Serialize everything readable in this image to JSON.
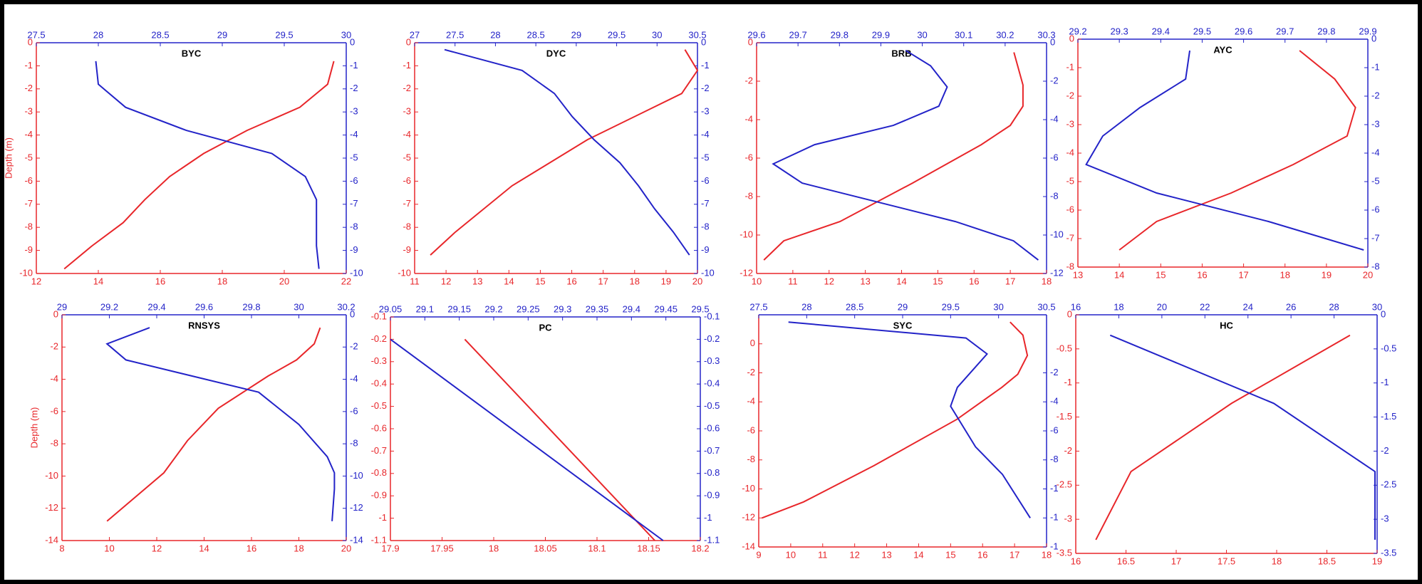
{
  "chart_data": [
    {
      "type": "line",
      "title": "BYC",
      "ylabel": "Depth (m)",
      "xlim": [
        12,
        22
      ],
      "xticks": [
        12,
        14,
        16,
        18,
        20,
        22
      ],
      "x2lim": [
        27.5,
        30
      ],
      "x2ticks": [
        27.5,
        28,
        28.5,
        29,
        29.5,
        30
      ],
      "ylim": [
        0,
        -10
      ],
      "yticks": [
        0,
        -1,
        -2,
        -3,
        -4,
        -5,
        -6,
        -7,
        -8,
        -9,
        -10
      ],
      "y2lim": [
        0,
        -10
      ],
      "y2ticks": [
        0,
        -1,
        -2,
        -3,
        -4,
        -5,
        -6,
        -7,
        -8,
        -9,
        -10
      ],
      "series": [
        {
          "color": "#e8262a",
          "x": [
            21.6,
            21.4,
            20.5,
            18.8,
            17.4,
            16.3,
            15.5,
            14.8,
            13.8,
            12.9
          ],
          "values": [
            -0.8,
            -1.8,
            -2.8,
            -3.8,
            -4.8,
            -5.8,
            -6.8,
            -7.8,
            -8.8,
            -9.8
          ]
        },
        {
          "color": "#2323c8",
          "axis": "y2",
          "x": [
            27.98,
            28.0,
            28.22,
            28.71,
            29.4,
            29.67,
            29.76,
            29.76,
            29.76,
            29.78
          ],
          "values": [
            -0.8,
            -1.8,
            -2.8,
            -3.8,
            -4.8,
            -5.8,
            -6.8,
            -7.8,
            -8.8,
            -9.8
          ]
        }
      ]
    },
    {
      "type": "line",
      "title": "DYC",
      "xlim": [
        11,
        20
      ],
      "xticks": [
        11,
        12,
        13,
        14,
        15,
        16,
        17,
        18,
        19,
        20
      ],
      "x2lim": [
        27,
        30.5
      ],
      "x2ticks": [
        27,
        27.5,
        28,
        28.5,
        29,
        29.5,
        30,
        30.5
      ],
      "ylim": [
        0,
        -10
      ],
      "yticks": [
        0,
        -1,
        -2,
        -3,
        -4,
        -5,
        -6,
        -7,
        -8,
        -9,
        -10
      ],
      "y2lim": [
        0,
        -10
      ],
      "y2ticks": [
        0,
        -1,
        -2,
        -3,
        -4,
        -5,
        -6,
        -7,
        -8,
        -9,
        -10
      ],
      "series": [
        {
          "color": "#e8262a",
          "x": [
            19.6,
            20.0,
            19.5,
            16.5,
            14.1,
            12.3,
            11.5
          ],
          "values": [
            -0.3,
            -1.2,
            -2.2,
            -4.2,
            -6.2,
            -8.2,
            -9.2
          ]
        },
        {
          "color": "#2323c8",
          "axis": "y2",
          "x": [
            27.37,
            28.33,
            28.73,
            28.95,
            29.22,
            29.54,
            29.77,
            29.97,
            30.2,
            30.4
          ],
          "values": [
            -0.3,
            -1.2,
            -2.2,
            -3.2,
            -4.2,
            -5.2,
            -6.2,
            -7.2,
            -8.2,
            -9.2
          ]
        }
      ]
    },
    {
      "type": "line",
      "title": "BRB",
      "xlim": [
        10,
        18
      ],
      "xticks": [
        10,
        11,
        12,
        13,
        14,
        15,
        16,
        17,
        18
      ],
      "x2lim": [
        29.6,
        30.3
      ],
      "x2ticks": [
        29.6,
        29.7,
        29.8,
        29.9,
        30,
        30.1,
        30.2,
        30.3
      ],
      "ylim": [
        0,
        -12
      ],
      "yticks": [
        0,
        -2,
        -4,
        -6,
        -8,
        -10,
        -12
      ],
      "y2lim": [
        0,
        -12
      ],
      "y2ticks": [
        0,
        -2,
        -4,
        -6,
        -8,
        -10,
        -12
      ],
      "series": [
        {
          "color": "#e8262a",
          "x": [
            17.1,
            17.35,
            17.35,
            17.0,
            16.2,
            14.3,
            12.3,
            10.75,
            10.2
          ],
          "values": [
            -0.5,
            -2.2,
            -3.3,
            -4.3,
            -5.3,
            -7.3,
            -9.3,
            -10.3,
            -11.3
          ]
        },
        {
          "color": "#2323c8",
          "axis": "y2",
          "x": [
            29.96,
            30.02,
            30.06,
            30.04,
            29.93,
            29.74,
            29.64,
            29.71,
            30.08,
            30.22,
            30.28
          ],
          "values": [
            -0.4,
            -1.2,
            -2.3,
            -3.3,
            -4.3,
            -5.3,
            -6.3,
            -7.3,
            -9.3,
            -10.3,
            -11.3
          ]
        }
      ]
    },
    {
      "type": "line",
      "title": "AYC",
      "xlim": [
        13,
        20
      ],
      "xticks": [
        13,
        14,
        15,
        16,
        17,
        18,
        19,
        20
      ],
      "x2lim": [
        29.2,
        29.9
      ],
      "x2ticks": [
        29.2,
        29.3,
        29.4,
        29.5,
        29.6,
        29.7,
        29.8,
        29.9
      ],
      "ylim": [
        0,
        -8
      ],
      "yticks": [
        0,
        -1,
        -2,
        -3,
        -4,
        -5,
        -6,
        -7,
        -8
      ],
      "y2lim": [
        0,
        -8
      ],
      "y2ticks": [
        0,
        -1,
        -2,
        -3,
        -4,
        -5,
        -6,
        -7,
        -8
      ],
      "series": [
        {
          "color": "#e8262a",
          "x": [
            18.35,
            19.2,
            19.7,
            19.5,
            18.2,
            16.7,
            14.9,
            14.0
          ],
          "values": [
            -0.4,
            -1.4,
            -2.4,
            -3.4,
            -4.4,
            -5.4,
            -6.4,
            -7.4
          ]
        },
        {
          "color": "#2323c8",
          "axis": "y2",
          "x": [
            29.47,
            29.46,
            29.35,
            29.26,
            29.22,
            29.39,
            29.66,
            29.89
          ],
          "values": [
            -0.4,
            -1.4,
            -2.4,
            -3.4,
            -4.4,
            -5.4,
            -6.4,
            -7.4
          ]
        }
      ]
    },
    {
      "type": "line",
      "title": "RNSYS",
      "ylabel": "Depth (m)",
      "xlim": [
        8,
        20
      ],
      "xticks": [
        8,
        10,
        12,
        14,
        16,
        18,
        20
      ],
      "x2lim": [
        29,
        30.2
      ],
      "x2ticks": [
        29,
        29.2,
        29.4,
        29.6,
        29.8,
        30,
        30.2
      ],
      "ylim": [
        0,
        -14
      ],
      "yticks": [
        0,
        -2,
        -4,
        -6,
        -8,
        -10,
        -12,
        -14
      ],
      "y2lim": [
        0,
        -14
      ],
      "y2ticks": [
        0,
        -2,
        -4,
        -6,
        -8,
        -10,
        -12,
        -14
      ],
      "series": [
        {
          "color": "#e8262a",
          "x": [
            18.9,
            18.65,
            17.9,
            16.7,
            14.6,
            13.3,
            12.3,
            9.9
          ],
          "values": [
            -0.8,
            -1.8,
            -2.8,
            -3.8,
            -5.8,
            -7.8,
            -9.8,
            -12.8
          ]
        },
        {
          "color": "#2323c8",
          "axis": "y2",
          "x": [
            29.37,
            29.19,
            29.27,
            29.83,
            30.0,
            30.12,
            30.15,
            30.15,
            30.14
          ],
          "values": [
            -0.8,
            -1.8,
            -2.8,
            -4.8,
            -6.8,
            -8.8,
            -9.8,
            -10.8,
            -12.8
          ]
        }
      ]
    },
    {
      "type": "line",
      "title": "PC",
      "xlim": [
        17.9,
        18.2
      ],
      "xticks": [
        17.9,
        17.95,
        18,
        18.05,
        18.1,
        18.15,
        18.2
      ],
      "x2lim": [
        29.05,
        29.5
      ],
      "x2ticks": [
        29.05,
        29.1,
        29.15,
        29.2,
        29.25,
        29.3,
        29.35,
        29.4,
        29.45,
        29.5
      ],
      "ylim": [
        -0.1,
        -1.1
      ],
      "yticks": [
        -0.1,
        -0.2,
        -0.3,
        -0.4,
        -0.5,
        -0.6,
        -0.7,
        -0.8,
        -0.9,
        -1,
        -1.1
      ],
      "y2lim": [
        -0.1,
        -1.1
      ],
      "y2ticks": [
        -0.1,
        -0.2,
        -0.3,
        -0.4,
        -0.5,
        -0.6,
        -0.7,
        -0.8,
        -0.9,
        -1,
        -1.1
      ],
      "series": [
        {
          "color": "#e8262a",
          "x": [
            17.972,
            18.156
          ],
          "values": [
            -0.2,
            -1.1
          ]
        },
        {
          "color": "#2323c8",
          "axis": "y2",
          "x": [
            29.05,
            29.446
          ],
          "values": [
            -0.2,
            -1.1
          ]
        }
      ]
    },
    {
      "type": "line",
      "title": "SYC",
      "xlim": [
        9,
        18
      ],
      "xticks": [
        9,
        10,
        11,
        12,
        13,
        14,
        15,
        16,
        17,
        18
      ],
      "x2lim": [
        27.5,
        30.5
      ],
      "x2ticks": [
        27.5,
        28,
        28.5,
        29,
        29.5,
        30,
        30.5
      ],
      "ylim": [
        2,
        -14
      ],
      "yticks": [
        0,
        -2,
        -4,
        -6,
        -8,
        -10,
        -12,
        -14
      ],
      "y2lim": [
        2,
        -14
      ],
      "y2ticks": [
        -2,
        -4,
        -6,
        -8,
        {
          "value": -10,
          "label": "-1"
        },
        {
          "value": -12,
          "label": "-1"
        },
        {
          "value": -14,
          "label": "-1"
        }
      ],
      "series": [
        {
          "color": "#e8262a",
          "x": [
            16.86,
            17.26,
            17.4,
            17.1,
            16.6,
            15.2,
            12.6,
            10.4,
            9.1
          ],
          "values": [
            1.5,
            0.6,
            -0.8,
            -2.1,
            -3.0,
            -5.2,
            -8.4,
            -10.9,
            -12.0
          ]
        },
        {
          "color": "#2323c8",
          "axis": "y2",
          "x": [
            27.81,
            29.66,
            29.88,
            29.57,
            29.5,
            29.76,
            30.04,
            30.33
          ],
          "values": [
            1.5,
            0.4,
            -0.7,
            -3.0,
            -4.3,
            -7.1,
            -9.0,
            -12.0
          ]
        }
      ]
    },
    {
      "type": "line",
      "title": "HC",
      "xlim": [
        16,
        19
      ],
      "xticks": [
        16,
        16.5,
        17,
        17.5,
        18,
        18.5,
        19
      ],
      "x2lim": [
        16,
        30
      ],
      "x2ticks": [
        16,
        18,
        20,
        22,
        24,
        26,
        28,
        30
      ],
      "ylim": [
        0,
        -3.5
      ],
      "yticks": [
        0,
        -0.5,
        -1,
        -1.5,
        -2,
        -2.5,
        -3,
        -3.5
      ],
      "y2lim": [
        0,
        -3.5
      ],
      "y2ticks": [
        0,
        -0.5,
        -1,
        -1.5,
        -2,
        -2.5,
        -3,
        -3.5
      ],
      "series": [
        {
          "color": "#e8262a",
          "x": [
            16.2,
            16.55,
            17.55,
            18.73
          ],
          "values": [
            -3.3,
            -2.3,
            -1.3,
            -0.3
          ]
        },
        {
          "color": "#2323c8",
          "axis": "y2",
          "x": [
            17.6,
            25.2,
            29.9,
            29.9
          ],
          "values": [
            -0.3,
            -1.3,
            -2.3,
            -3.3
          ]
        }
      ]
    }
  ]
}
